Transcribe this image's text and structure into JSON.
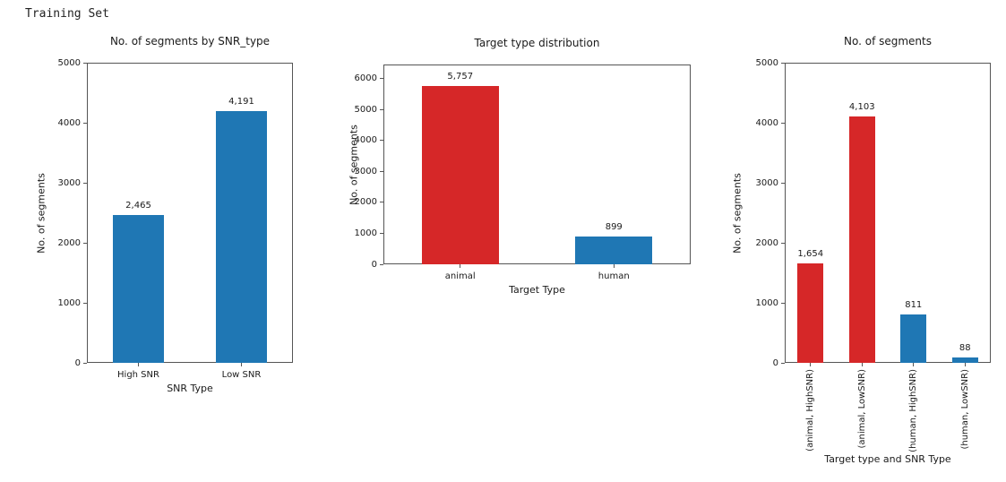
{
  "page_title": "Training Set",
  "colors": {
    "bar_blue": "#1f77b4",
    "bar_red": "#d62728",
    "axis": "#555555",
    "text": "#1a1a1a"
  },
  "chart_data": [
    {
      "type": "bar",
      "title": "No. of segments by SNR_type",
      "xlabel": "SNR Type",
      "ylabel": "No. of segments",
      "categories": [
        "High SNR",
        "Low SNR"
      ],
      "values": [
        2465,
        4191
      ],
      "value_labels": [
        "2,465",
        "4,191"
      ],
      "bar_colors": [
        "#1f77b4",
        "#1f77b4"
      ],
      "ylim": [
        0,
        5000
      ],
      "yticks": [
        0,
        1000,
        2000,
        3000,
        4000,
        5000
      ],
      "grid": false,
      "legend": null,
      "xtick_rotation": 0
    },
    {
      "type": "bar",
      "title": "Target type distribution",
      "xlabel": "Target Type",
      "ylabel": "No. of segments",
      "categories": [
        "animal",
        "human"
      ],
      "values": [
        5757,
        899
      ],
      "value_labels": [
        "5,757",
        "899"
      ],
      "bar_colors": [
        "#d62728",
        "#1f77b4"
      ],
      "ylim": [
        0,
        6450
      ],
      "yticks": [
        0,
        1000,
        2000,
        3000,
        4000,
        5000,
        6000
      ],
      "grid": false,
      "legend": null,
      "xtick_rotation": 0
    },
    {
      "type": "bar",
      "title": "No. of segments",
      "xlabel": "Target type and SNR Type",
      "ylabel": "No. of segments",
      "categories": [
        "(animal, HighSNR)",
        "(animal, LowSNR)",
        "(human, HighSNR)",
        "(human, LowSNR)"
      ],
      "values": [
        1654,
        4103,
        811,
        88
      ],
      "value_labels": [
        "1,654",
        "4,103",
        "811",
        "88"
      ],
      "bar_colors": [
        "#d62728",
        "#d62728",
        "#1f77b4",
        "#1f77b4"
      ],
      "ylim": [
        0,
        5000
      ],
      "yticks": [
        0,
        1000,
        2000,
        3000,
        4000,
        5000
      ],
      "grid": false,
      "legend": null,
      "xtick_rotation": 90
    }
  ]
}
